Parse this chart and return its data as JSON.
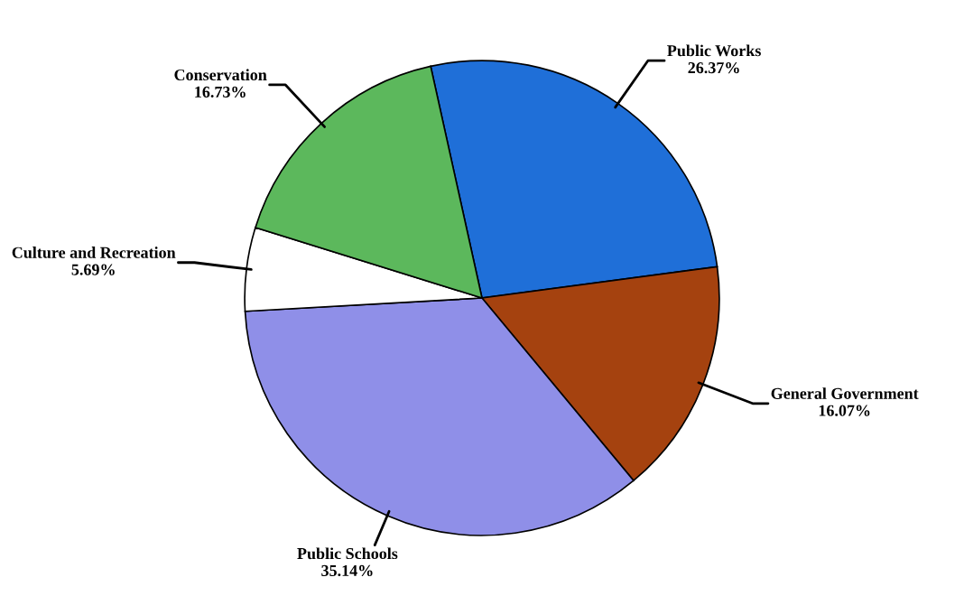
{
  "chart_data": {
    "type": "pie",
    "categories": [
      "Public Works",
      "General Government",
      "Public Schools",
      "Culture and Recreation",
      "Conservation"
    ],
    "values": [
      26.37,
      16.07,
      35.14,
      5.69,
      16.73
    ],
    "value_labels": [
      "26.37%",
      "16.07%",
      "35.14%",
      "5.69%",
      "16.73%"
    ],
    "colors": [
      "#1f6fd8",
      "#a5420f",
      "#8f8fe8",
      "#ffffff",
      "#5cb85c"
    ]
  }
}
